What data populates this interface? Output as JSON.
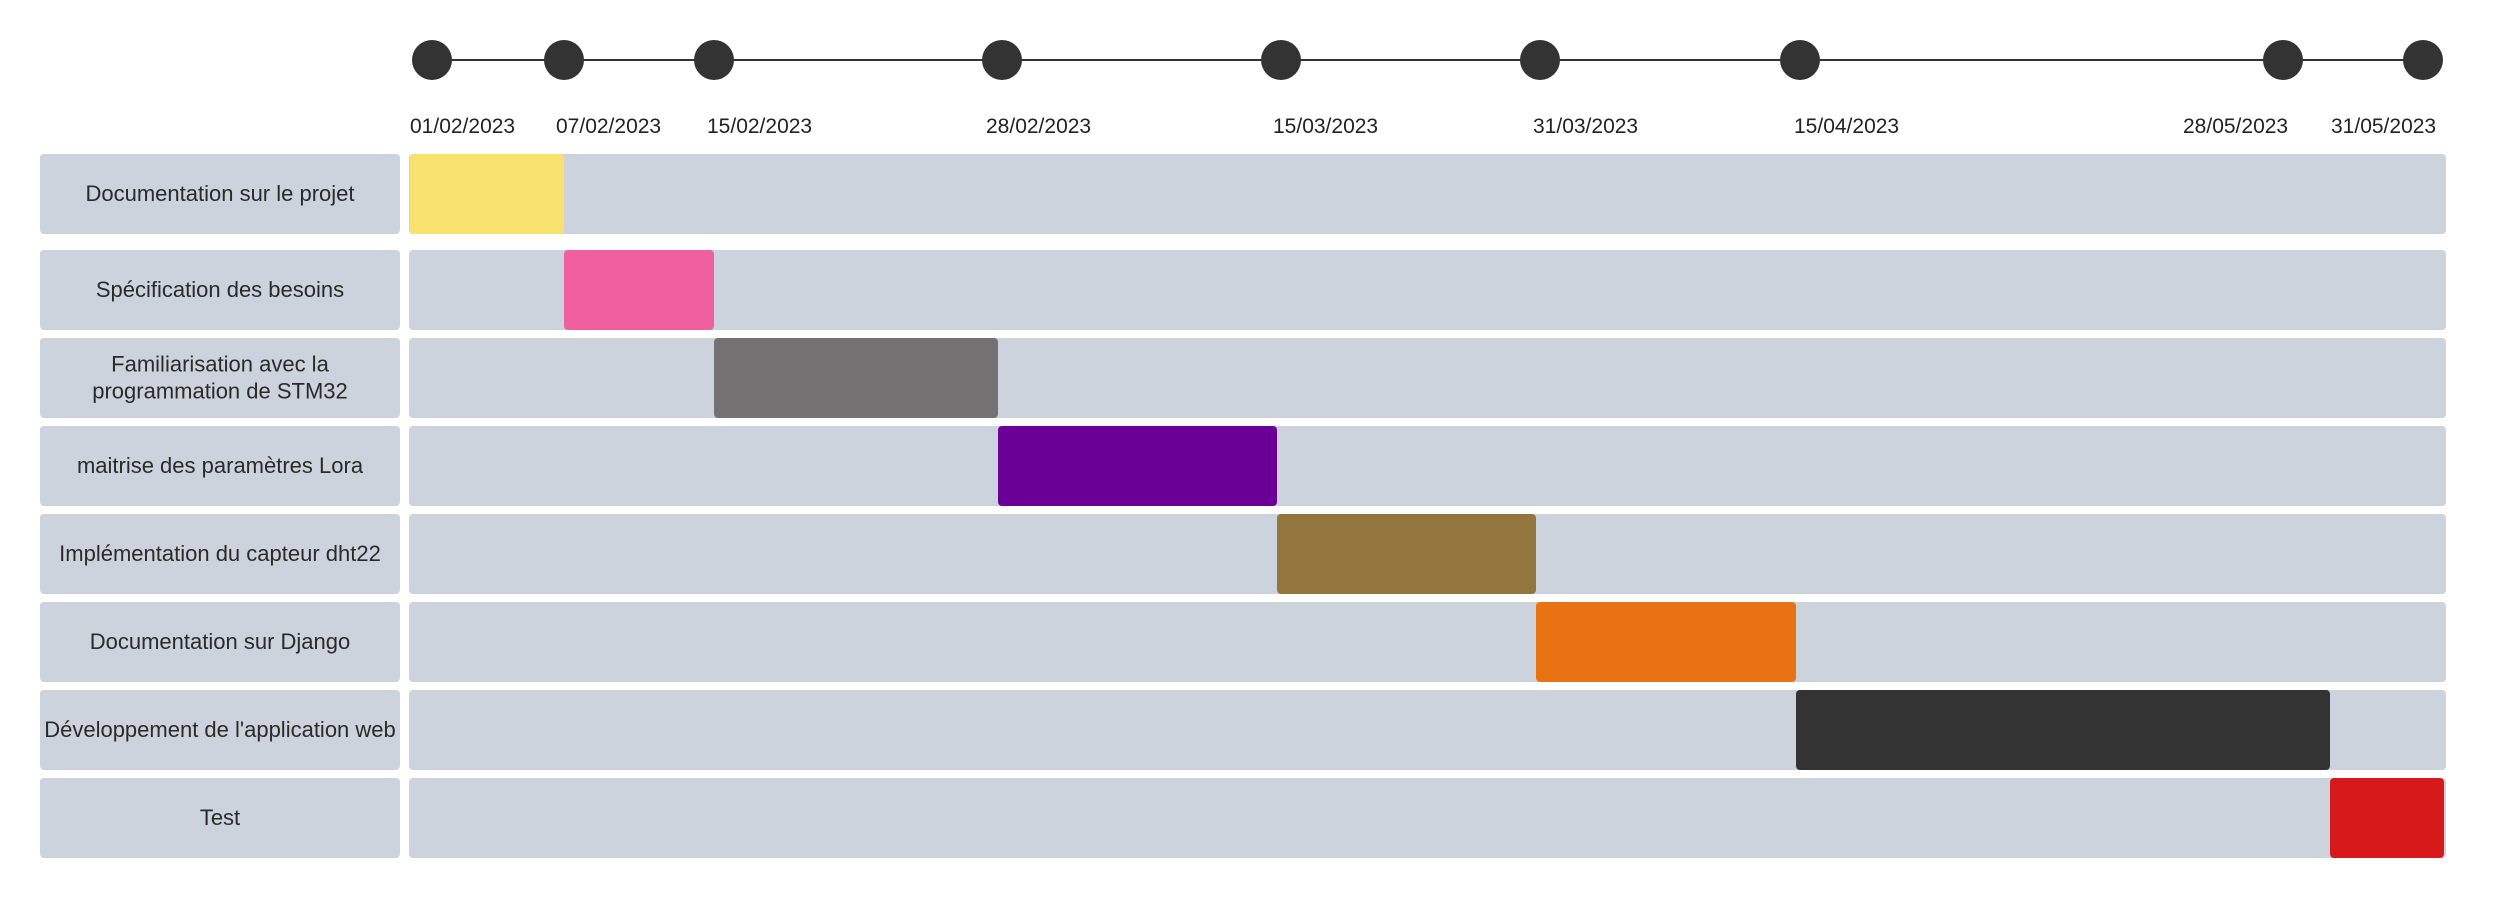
{
  "chart_data": {
    "type": "gantt",
    "milestones": [
      "01/02/2023",
      "07/02/2023",
      "15/02/2023",
      "28/02/2023",
      "15/03/2023",
      "31/03/2023",
      "15/04/2023",
      "28/05/2023",
      "31/05/2023"
    ],
    "tasks": [
      {
        "name": "Documentation sur le projet",
        "start": "01/02/2023",
        "end": "07/02/2023",
        "color": "#f8e16c"
      },
      {
        "name": "Spécification des besoins",
        "start": "07/02/2023",
        "end": "15/02/2023",
        "color": "#f0609e"
      },
      {
        "name": "Familiarisation avec la programmation de STM32",
        "start": "15/02/2023",
        "end": "28/02/2023",
        "color": "#737171"
      },
      {
        "name": "maitrise des paramètres Lora",
        "start": "28/02/2023",
        "end": "15/03/2023",
        "color": "#6a0096"
      },
      {
        "name": "Implémentation du capteur dht22",
        "start": "15/03/2023",
        "end": "31/03/2023",
        "color": "#93753e"
      },
      {
        "name": "Documentation sur Django",
        "start": "31/03/2023",
        "end": "15/04/2023",
        "color": "#e97212"
      },
      {
        "name": "Développement de l'application web",
        "start": "15/04/2023",
        "end": "28/05/2023",
        "color": "#333333"
      },
      {
        "name": "Test",
        "start": "28/05/2023",
        "end": "31/05/2023",
        "color": "#d71919"
      }
    ],
    "colors": {
      "track": "#cdd3dc",
      "label_box": "#cdd3dc",
      "milestone_dot": "#333333",
      "timeline_line": "#333333"
    }
  }
}
